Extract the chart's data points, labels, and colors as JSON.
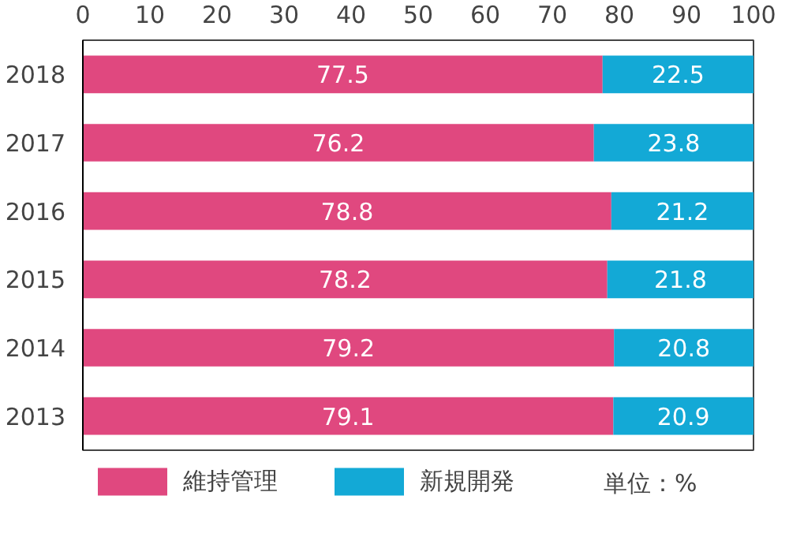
{
  "chart_data": {
    "type": "bar",
    "orientation": "horizontal",
    "stacked": true,
    "categories": [
      "2018",
      "2017",
      "2016",
      "2015",
      "2014",
      "2013"
    ],
    "series": [
      {
        "name": "維持管理",
        "color": "#e0487f",
        "values": [
          77.5,
          76.2,
          78.8,
          78.2,
          79.2,
          79.1
        ]
      },
      {
        "name": "新規開発",
        "color": "#13a9d6",
        "values": [
          22.5,
          23.8,
          21.2,
          21.8,
          20.8,
          20.9
        ]
      }
    ],
    "xlim": [
      0,
      100
    ],
    "xticks": [
      0,
      10,
      20,
      30,
      40,
      50,
      60,
      70,
      80,
      90,
      100
    ],
    "grid": false,
    "legend": "bottom",
    "data_labels": true,
    "annotations": [
      "単位：%"
    ]
  }
}
